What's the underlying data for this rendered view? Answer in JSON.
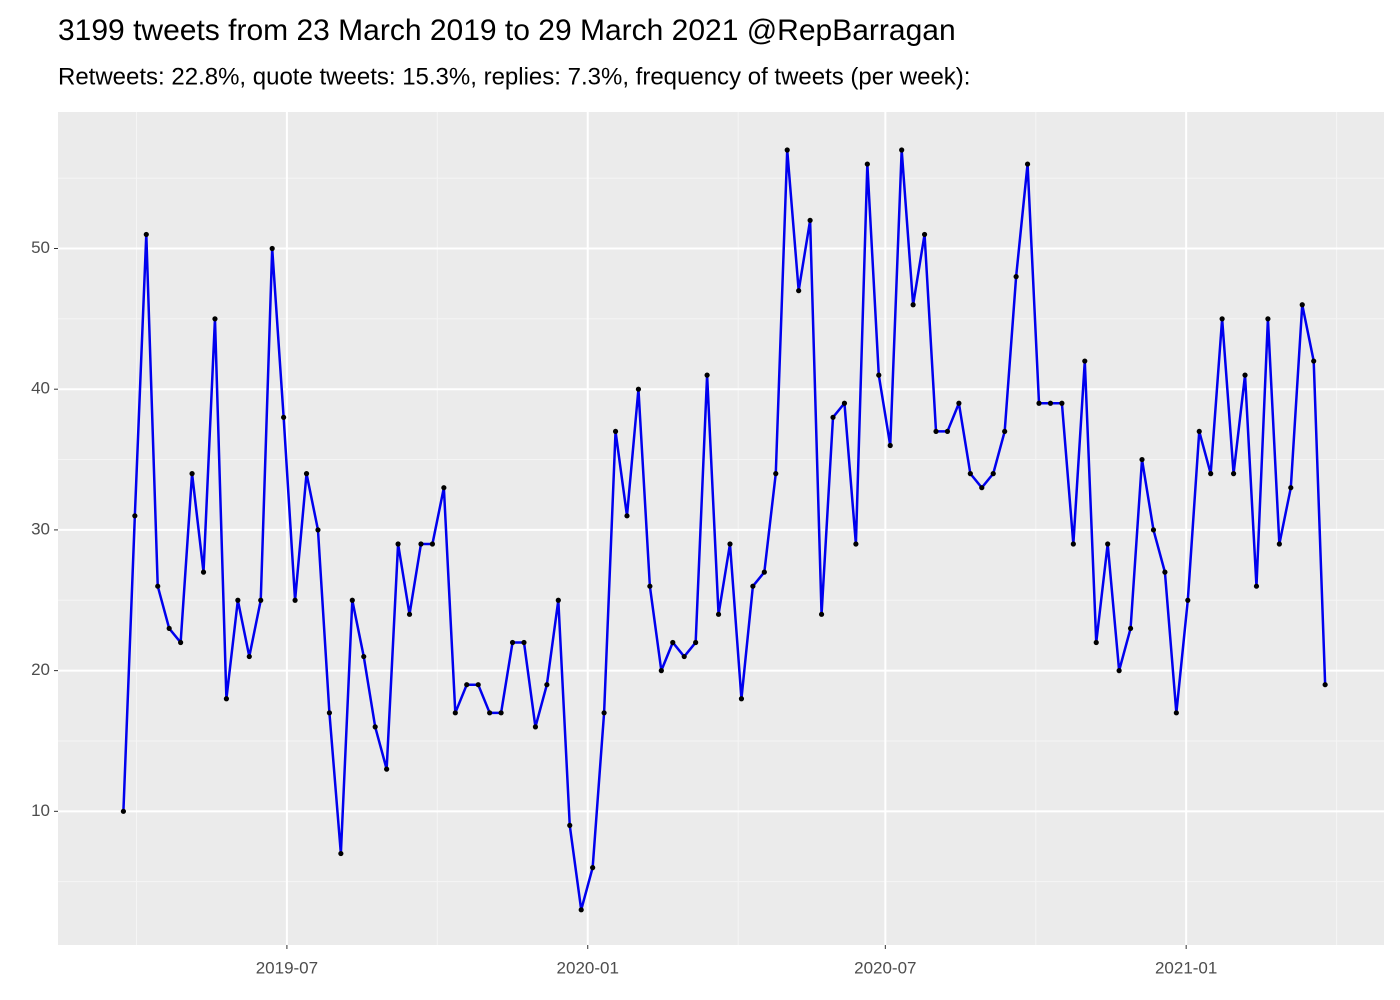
{
  "chart_data": {
    "type": "line",
    "title": "3199 tweets from 23 March 2019 to 29 March 2021 @RepBarragan",
    "subtitle": "Retweets: 22.8%, quote tweets: 15.3%, replies: 7.3%, frequency of tweets (per week):",
    "x": [
      "2019-03-23",
      "2019-03-30",
      "2019-04-06",
      "2019-04-13",
      "2019-04-20",
      "2019-04-27",
      "2019-05-04",
      "2019-05-11",
      "2019-05-18",
      "2019-05-25",
      "2019-06-01",
      "2019-06-08",
      "2019-06-15",
      "2019-06-22",
      "2019-06-29",
      "2019-07-06",
      "2019-07-13",
      "2019-07-20",
      "2019-07-27",
      "2019-08-03",
      "2019-08-10",
      "2019-08-17",
      "2019-08-24",
      "2019-08-31",
      "2019-09-07",
      "2019-09-14",
      "2019-09-21",
      "2019-09-28",
      "2019-10-05",
      "2019-10-12",
      "2019-10-19",
      "2019-10-26",
      "2019-11-02",
      "2019-11-09",
      "2019-11-16",
      "2019-11-23",
      "2019-11-30",
      "2019-12-07",
      "2019-12-14",
      "2019-12-21",
      "2019-12-28",
      "2020-01-04",
      "2020-01-11",
      "2020-01-18",
      "2020-01-25",
      "2020-02-01",
      "2020-02-08",
      "2020-02-15",
      "2020-02-22",
      "2020-02-29",
      "2020-03-07",
      "2020-03-14",
      "2020-03-21",
      "2020-03-28",
      "2020-04-04",
      "2020-04-11",
      "2020-04-18",
      "2020-04-25",
      "2020-05-02",
      "2020-05-09",
      "2020-05-16",
      "2020-05-23",
      "2020-05-30",
      "2020-06-06",
      "2020-06-13",
      "2020-06-20",
      "2020-06-27",
      "2020-07-04",
      "2020-07-11",
      "2020-07-18",
      "2020-07-25",
      "2020-08-01",
      "2020-08-08",
      "2020-08-15",
      "2020-08-22",
      "2020-08-29",
      "2020-09-05",
      "2020-09-12",
      "2020-09-19",
      "2020-09-26",
      "2020-10-03",
      "2020-10-10",
      "2020-10-17",
      "2020-10-24",
      "2020-10-31",
      "2020-11-07",
      "2020-11-14",
      "2020-11-21",
      "2020-11-28",
      "2020-12-05",
      "2020-12-12",
      "2020-12-19",
      "2020-12-26",
      "2021-01-02",
      "2021-01-09",
      "2021-01-16",
      "2021-01-23",
      "2021-01-30",
      "2021-02-06",
      "2021-02-13",
      "2021-02-20",
      "2021-02-27",
      "2021-03-06",
      "2021-03-13",
      "2021-03-20",
      "2021-03-27"
    ],
    "series": [
      {
        "color": "#0000ee",
        "point_color": "#000000",
        "values": [
          10,
          31,
          51,
          26,
          23,
          22,
          34,
          27,
          45,
          18,
          25,
          21,
          25,
          50,
          38,
          25,
          34,
          30,
          17,
          7,
          25,
          21,
          16,
          13,
          29,
          24,
          29,
          29,
          33,
          17,
          19,
          19,
          17,
          17,
          22,
          22,
          16,
          19,
          25,
          9,
          3,
          6,
          17,
          37,
          31,
          40,
          26,
          20,
          22,
          21,
          22,
          41,
          24,
          29,
          18,
          26,
          27,
          34,
          57,
          47,
          52,
          24,
          38,
          39,
          29,
          56,
          41,
          36,
          57,
          46,
          51,
          37,
          37,
          39,
          34,
          33,
          34,
          37,
          48,
          56,
          39,
          39,
          39,
          29,
          42,
          22,
          29,
          20,
          23,
          35,
          30,
          27,
          17,
          25,
          37,
          34,
          45,
          34,
          41,
          26,
          45,
          29,
          33,
          46,
          42,
          19
        ]
      }
    ],
    "xlim": [
      "2019-02-11",
      "2021-05-02"
    ],
    "xticks": [
      {
        "value": "2019-07-01",
        "label": "2019-07"
      },
      {
        "value": "2020-01-01",
        "label": "2020-01"
      },
      {
        "value": "2020-07-01",
        "label": "2020-07"
      },
      {
        "value": "2021-01-01",
        "label": "2021-01"
      }
    ],
    "ylim": [
      0.5,
      59.7
    ],
    "yticks": [
      10,
      20,
      30,
      40,
      50
    ],
    "grid": true
  }
}
